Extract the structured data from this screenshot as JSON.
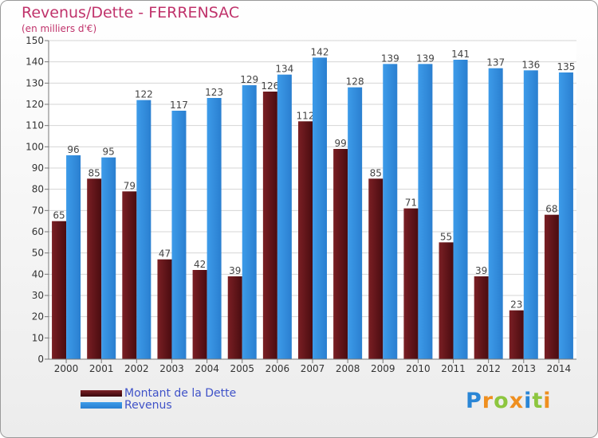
{
  "title": "Revenus/Dette - FERRENSAC",
  "subtitle": "(en milliers d'€)",
  "brand": "Proxiti",
  "chart_data": {
    "type": "bar",
    "categories": [
      "2000",
      "2001",
      "2002",
      "2003",
      "2004",
      "2005",
      "2006",
      "2007",
      "2008",
      "2009",
      "2010",
      "2011",
      "2012",
      "2013",
      "2014"
    ],
    "series": [
      {
        "name": "Montant de la Dette",
        "color": "#7a1f24",
        "values": [
          65,
          85,
          79,
          47,
          42,
          39,
          126,
          112,
          99,
          85,
          71,
          55,
          39,
          23,
          68
        ]
      },
      {
        "name": "Revenus",
        "color": "#3d9be9",
        "values": [
          96,
          95,
          122,
          117,
          123,
          129,
          134,
          142,
          128,
          139,
          139,
          141,
          137,
          136,
          135
        ]
      }
    ],
    "ylim": [
      0,
      150
    ],
    "yticks": [
      0,
      10,
      20,
      30,
      40,
      50,
      60,
      70,
      80,
      90,
      100,
      110,
      120,
      130,
      140,
      150
    ],
    "grid": true,
    "legend_position": "bottom-left"
  }
}
